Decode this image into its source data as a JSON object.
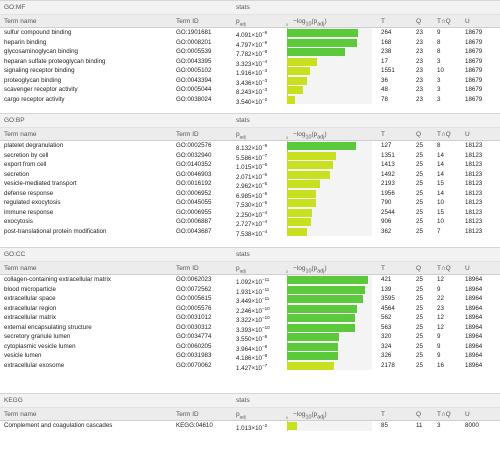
{
  "columns": {
    "term_name": "Term name",
    "term_id": "Term ID",
    "padj": "p",
    "padj_sub": "adj",
    "neglog": "−log",
    "neglog_sub": "10",
    "neglog_mid": "(p",
    "neglog_sub2": "adj",
    "neglog_end": ")",
    "T": "T",
    "Q": "Q",
    "TQ": "T∩Q",
    "U": "U",
    "stats": "stats",
    "axis_zero": "0"
  },
  "colors": {
    "bar_dark": "#5cc83b",
    "bar_light": "#c9e021"
  },
  "sections": [
    {
      "name": "GO:MF",
      "rows": [
        {
          "name": "sulfur compound binding",
          "id": "GO:1901681",
          "p_base": "4.091×10",
          "p_exp": "−9",
          "T": "264",
          "Q": "23",
          "TQ": "9",
          "U": "18679",
          "bar": 0.84
        },
        {
          "name": "heparin binding",
          "id": "GO:0008201",
          "p_base": "4.797×10",
          "p_exp": "−9",
          "T": "168",
          "Q": "23",
          "TQ": "8",
          "U": "18679",
          "bar": 0.83
        },
        {
          "name": "glycosaminoglycan binding",
          "id": "GO:0005539",
          "p_base": "7.782×10",
          "p_exp": "−8",
          "T": "238",
          "Q": "23",
          "TQ": "8",
          "U": "18679",
          "bar": 0.69
        },
        {
          "name": "heparan sulfate proteoglycan binding",
          "id": "GO:0043395",
          "p_base": "3.323×10",
          "p_exp": "−4",
          "T": "17",
          "Q": "23",
          "TQ": "3",
          "U": "18679",
          "bar": 0.36
        },
        {
          "name": "signaling receptor binding",
          "id": "GO:0005102",
          "p_base": "1.916×10",
          "p_exp": "−3",
          "T": "1551",
          "Q": "23",
          "TQ": "10",
          "U": "18679",
          "bar": 0.27
        },
        {
          "name": "proteoglycan binding",
          "id": "GO:0043394",
          "p_base": "3.436×10",
          "p_exp": "−3",
          "T": "36",
          "Q": "23",
          "TQ": "3",
          "U": "18679",
          "bar": 0.24
        },
        {
          "name": "scavenger receptor activity",
          "id": "GO:0005044",
          "p_base": "8.243×10",
          "p_exp": "−3",
          "T": "48",
          "Q": "23",
          "TQ": "3",
          "U": "18679",
          "bar": 0.19
        },
        {
          "name": "cargo receptor activity",
          "id": "GO:0038024",
          "p_base": "3.540×10",
          "p_exp": "−2",
          "T": "78",
          "Q": "23",
          "TQ": "3",
          "U": "18679",
          "bar": 0.1
        }
      ]
    },
    {
      "name": "GO:BP",
      "rows": [
        {
          "name": "platelet degranulation",
          "id": "GO:0002576",
          "p_base": "8.132×10",
          "p_exp": "−9",
          "T": "127",
          "Q": "25",
          "TQ": "8",
          "U": "18123",
          "bar": 0.82
        },
        {
          "name": "secretion by cell",
          "id": "GO:0032940",
          "p_base": "5.586×10",
          "p_exp": "−7",
          "T": "1351",
          "Q": "25",
          "TQ": "14",
          "U": "18123",
          "bar": 0.58
        },
        {
          "name": "export from cell",
          "id": "GO:0140352",
          "p_base": "1.015×10",
          "p_exp": "−6",
          "T": "1413",
          "Q": "25",
          "TQ": "14",
          "U": "18123",
          "bar": 0.55
        },
        {
          "name": "secretion",
          "id": "GO:0046903",
          "p_base": "2.071×10",
          "p_exp": "−6",
          "T": "1492",
          "Q": "25",
          "TQ": "14",
          "U": "18123",
          "bar": 0.51
        },
        {
          "name": "vesicle-mediated transport",
          "id": "GO:0016192",
          "p_base": "2.962×10",
          "p_exp": "−5",
          "T": "2193",
          "Q": "25",
          "TQ": "15",
          "U": "18123",
          "bar": 0.39
        },
        {
          "name": "defense response",
          "id": "GO:0006952",
          "p_base": "6.985×10",
          "p_exp": "−5",
          "T": "1956",
          "Q": "25",
          "TQ": "14",
          "U": "18123",
          "bar": 0.35
        },
        {
          "name": "regulated exocytosis",
          "id": "GO:0045055",
          "p_base": "7.530×10",
          "p_exp": "−5",
          "T": "790",
          "Q": "25",
          "TQ": "10",
          "U": "18123",
          "bar": 0.35
        },
        {
          "name": "immune response",
          "id": "GO:0006955",
          "p_base": "2.250×10",
          "p_exp": "−4",
          "T": "2544",
          "Q": "25",
          "TQ": "15",
          "U": "18123",
          "bar": 0.3
        },
        {
          "name": "exocytosis",
          "id": "GO:0006887",
          "p_base": "2.727×10",
          "p_exp": "−4",
          "T": "906",
          "Q": "25",
          "TQ": "10",
          "U": "18123",
          "bar": 0.29
        },
        {
          "name": "post-translational protein modification",
          "id": "GO:0043687",
          "p_base": "7.538×10",
          "p_exp": "−4",
          "T": "362",
          "Q": "25",
          "TQ": "7",
          "U": "18123",
          "bar": 0.24
        }
      ]
    },
    {
      "name": "GO:CC",
      "rows": [
        {
          "name": "collagen-containing extracellular matrix",
          "id": "GO:0062023",
          "p_base": "1.092×10",
          "p_exp": "−11",
          "T": "421",
          "Q": "25",
          "TQ": "12",
          "U": "18964",
          "bar": 0.96
        },
        {
          "name": "blood microparticle",
          "id": "GO:0072562",
          "p_base": "1.931×10",
          "p_exp": "−11",
          "T": "139",
          "Q": "25",
          "TQ": "9",
          "U": "18964",
          "bar": 0.93
        },
        {
          "name": "extracellular space",
          "id": "GO:0005615",
          "p_base": "3.449×10",
          "p_exp": "−11",
          "T": "3595",
          "Q": "25",
          "TQ": "22",
          "U": "18964",
          "bar": 0.91
        },
        {
          "name": "extracellular region",
          "id": "GO:0005576",
          "p_base": "2.246×10",
          "p_exp": "−10",
          "T": "4564",
          "Q": "25",
          "TQ": "23",
          "U": "18964",
          "bar": 0.83
        },
        {
          "name": "extracellular matrix",
          "id": "GO:0031012",
          "p_base": "3.322×10",
          "p_exp": "−10",
          "T": "562",
          "Q": "25",
          "TQ": "12",
          "U": "18964",
          "bar": 0.81
        },
        {
          "name": "external encapsulating structure",
          "id": "GO:0030312",
          "p_base": "3.393×10",
          "p_exp": "−10",
          "T": "563",
          "Q": "25",
          "TQ": "12",
          "U": "18964",
          "bar": 0.81
        },
        {
          "name": "secretory granule lumen",
          "id": "GO:0034774",
          "p_base": "3.550×10",
          "p_exp": "−8",
          "T": "320",
          "Q": "25",
          "TQ": "9",
          "U": "18964",
          "bar": 0.62
        },
        {
          "name": "cytoplasmic vesicle lumen",
          "id": "GO:0060205",
          "p_base": "3.964×10",
          "p_exp": "−8",
          "T": "324",
          "Q": "25",
          "TQ": "9",
          "U": "18964",
          "bar": 0.61
        },
        {
          "name": "vesicle lumen",
          "id": "GO:0031983",
          "p_base": "4.186×10",
          "p_exp": "−8",
          "T": "326",
          "Q": "25",
          "TQ": "9",
          "U": "18964",
          "bar": 0.61
        },
        {
          "name": "extracellular exosome",
          "id": "GO:0070062",
          "p_base": "1.427×10",
          "p_exp": "−7",
          "T": "2178",
          "Q": "25",
          "TQ": "16",
          "U": "18964",
          "bar": 0.56
        }
      ]
    },
    {
      "name": "KEGG",
      "rows": [
        {
          "name": "Complement and coagulation cascades",
          "id": "KEGG:04610",
          "p_base": "1.013×10",
          "p_exp": "−2",
          "T": "85",
          "Q": "11",
          "TQ": "3",
          "U": "8000",
          "bar": 0.12
        }
      ]
    }
  ]
}
